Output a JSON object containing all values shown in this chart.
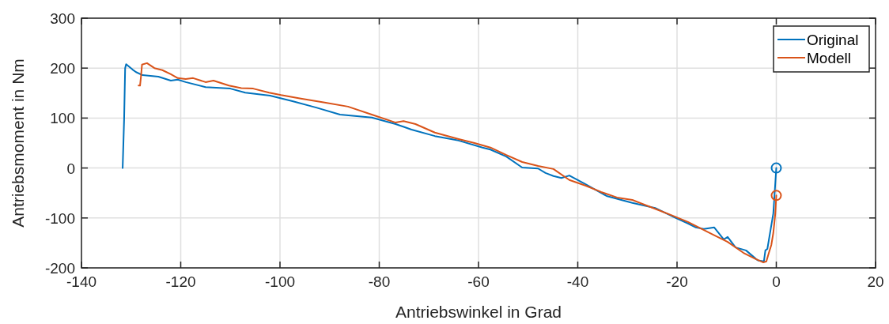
{
  "chart_data": {
    "type": "line",
    "xlabel": "Antriebswinkel in Grad",
    "ylabel": "Antriebsmoment in Nm",
    "xlim": [
      -140,
      20
    ],
    "ylim": [
      -200,
      300
    ],
    "xticks": [
      -140,
      -120,
      -100,
      -80,
      -60,
      -40,
      -20,
      0,
      20
    ],
    "yticks": [
      -200,
      -100,
      0,
      100,
      200,
      300
    ],
    "grid": true,
    "legend": "top right",
    "line_style": "solid",
    "series": [
      {
        "name": "Original",
        "color": "#0072bd",
        "marker": "none",
        "x": [
          -131.7,
          -131.4,
          -131.2,
          -131.0,
          -129.7,
          -129,
          -127.7,
          -124.5,
          -122,
          -120.6,
          -119,
          -115,
          -110,
          -107,
          -102,
          -97.5,
          -92.7,
          -87.9,
          -81.5,
          -76.7,
          -73.5,
          -68.8,
          -64,
          -59.2,
          -57.6,
          -54.4,
          -51.2,
          -48,
          -46.5,
          -44.9,
          -43.3,
          -41.7,
          -38.5,
          -34.2,
          -29,
          -24.4,
          -20.5,
          -17.8,
          -16.2,
          -14.6,
          -12.5,
          -10.6,
          -9.8,
          -8.2,
          -6.1,
          -4.1,
          -3.7,
          -2.5,
          -2.2,
          -1.8,
          -0.6,
          0
        ],
        "values": [
          0,
          100,
          200,
          208,
          197,
          192,
          186,
          183,
          175,
          177,
          172,
          162,
          159,
          151,
          145,
          134,
          121,
          107,
          101,
          88,
          77,
          64,
          55,
          41,
          37,
          23,
          1,
          -1,
          -10,
          -16,
          -20,
          -15,
          -32,
          -56,
          -70,
          -80,
          -99,
          -111,
          -119,
          -122,
          -119,
          -143,
          -138,
          -159,
          -165,
          -182,
          -185,
          -187,
          -165,
          -162,
          -91,
          0
        ]
      },
      {
        "name": "Modell",
        "color": "#d95319",
        "marker": "none",
        "x": [
          -128.5,
          -128.2,
          -128,
          -127.8,
          -126.8,
          -125.3,
          -123.7,
          -122,
          -120.6,
          -119,
          -117.5,
          -115,
          -113.4,
          -110.3,
          -107.8,
          -105.4,
          -102.2,
          -99.8,
          -95.8,
          -91,
          -86.3,
          -81.5,
          -76.7,
          -75.1,
          -72.7,
          -68.8,
          -64,
          -60.8,
          -57.6,
          -54.4,
          -51.2,
          -48,
          -44.9,
          -41.7,
          -38.5,
          -35.3,
          -32.1,
          -29,
          -24.1,
          -21,
          -17.8,
          -13,
          -9.8,
          -6.6,
          -4.2,
          -2.6,
          -2,
          -1.5,
          -1,
          -0.6,
          -0.2,
          0
        ],
        "values": [
          165,
          165,
          184,
          207,
          210,
          200,
          196,
          188,
          180,
          178,
          180,
          172,
          175,
          165,
          160,
          159,
          151,
          146,
          139,
          131,
          123,
          107,
          91,
          94,
          88,
          71,
          58,
          50,
          41,
          26,
          12,
          4,
          -2,
          -24,
          -35,
          -48,
          -59,
          -64,
          -83,
          -95,
          -108,
          -132,
          -148,
          -170,
          -182,
          -189,
          -187,
          -170,
          -154,
          -130,
          -91,
          -55
        ]
      },
      {
        "type": "scatter",
        "color": "#0072bd",
        "marker": "circle",
        "x": [
          0
        ],
        "values": [
          0
        ]
      },
      {
        "type": "scatter",
        "color": "#d95319",
        "marker": "circle",
        "x": [
          0
        ],
        "values": [
          -55
        ]
      }
    ]
  }
}
